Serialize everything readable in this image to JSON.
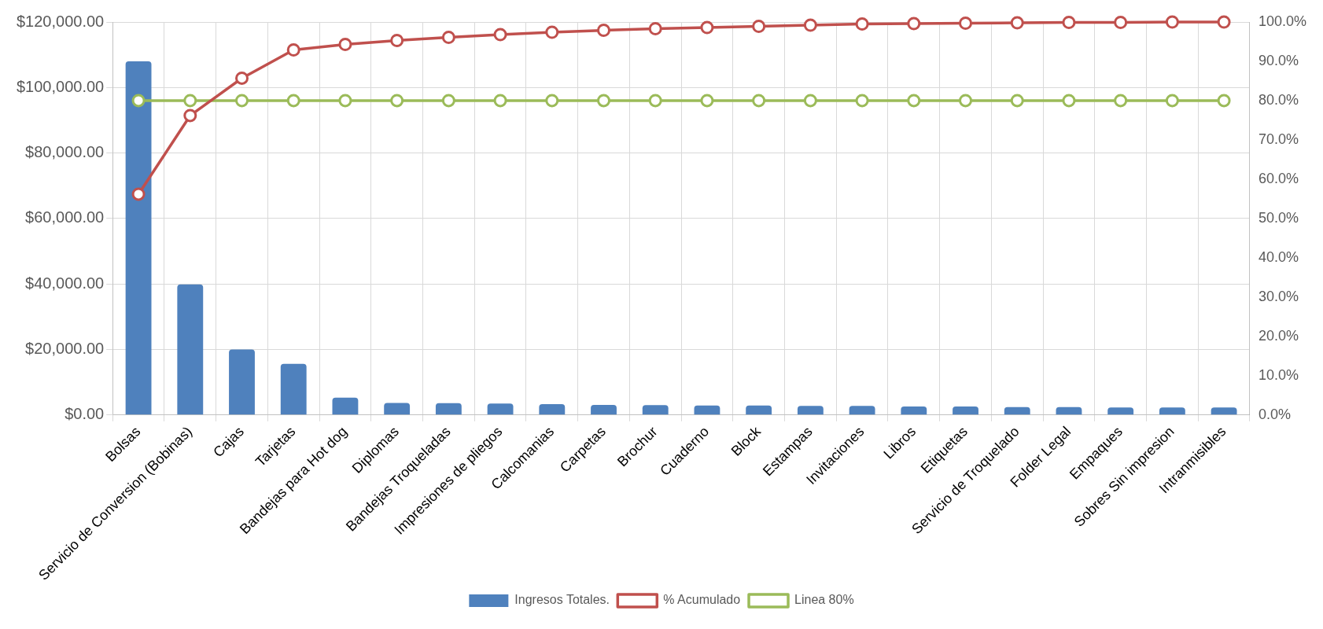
{
  "chart_data": {
    "type": "bar",
    "categories": [
      "Bolsas",
      "Servicio de Conversion (Bobinas)",
      "Cajas",
      "Tarjetas",
      "Bandejas para Hot dog",
      "Diplomas",
      "Bandejas Troqueladas",
      "Impresiones de pliegos",
      "Calcomanias",
      "Carpetas",
      "Brochur",
      "Cuaderno",
      "Block",
      "Estampas",
      "Invitaciones",
      "Libros",
      "Etiquetas",
      "Servicio de Troquelado",
      "Folder Legal",
      "Empaques",
      "Sobres Sin impresion",
      "Intranmisibles"
    ],
    "series": [
      {
        "name": "Ingresos Totales.",
        "color": "#4f81bd",
        "values": [
          108000,
          39900,
          20000,
          15600,
          5300,
          3700,
          3600,
          3500,
          3300,
          3100,
          3000,
          2900,
          2900,
          2800,
          2800,
          2600,
          2600,
          2400,
          2400,
          2300,
          2300,
          2300
        ]
      },
      {
        "name": "% Acumulado",
        "type": "line",
        "axis": "y2",
        "color": "#c0504d",
        "values": [
          56.2,
          76.2,
          85.7,
          92.9,
          94.3,
          95.3,
          96.1,
          96.8,
          97.4,
          97.9,
          98.3,
          98.6,
          98.9,
          99.2,
          99.5,
          99.6,
          99.7,
          99.8,
          99.9,
          99.9,
          100,
          100
        ]
      },
      {
        "name": "Linea 80%",
        "type": "line",
        "axis": "y2",
        "color": "#9bbb59",
        "values": [
          80,
          80,
          80,
          80,
          80,
          80,
          80,
          80,
          80,
          80,
          80,
          80,
          80,
          80,
          80,
          80,
          80,
          80,
          80,
          80,
          80,
          80
        ]
      }
    ],
    "ylim": [
      0,
      120000
    ],
    "yticks": [
      {
        "value": 0,
        "label": "$0.00"
      },
      {
        "value": 20000,
        "label": "$20,000.00"
      },
      {
        "value": 40000,
        "label": "$40,000.00"
      },
      {
        "value": 60000,
        "label": "$60,000.00"
      },
      {
        "value": 80000,
        "label": "$80,000.00"
      },
      {
        "value": 100000,
        "label": "$100,000.00"
      },
      {
        "value": 120000,
        "label": "$120,000.00"
      }
    ],
    "y2lim": [
      0,
      100
    ],
    "y2ticks": [
      {
        "value": 0,
        "label": "0.0%"
      },
      {
        "value": 10,
        "label": "10.0%"
      },
      {
        "value": 20,
        "label": "20.0%"
      },
      {
        "value": 30,
        "label": "30.0%"
      },
      {
        "value": 40,
        "label": "40.0%"
      },
      {
        "value": 50,
        "label": "50.0%"
      },
      {
        "value": 60,
        "label": "60.0%"
      },
      {
        "value": 70,
        "label": "70.0%"
      },
      {
        "value": 80,
        "label": "80.0%"
      },
      {
        "value": 90,
        "label": "90.0%"
      },
      {
        "value": 100,
        "label": "100.0%"
      }
    ],
    "grid": true,
    "legend": "bottom",
    "marker": "circle"
  }
}
